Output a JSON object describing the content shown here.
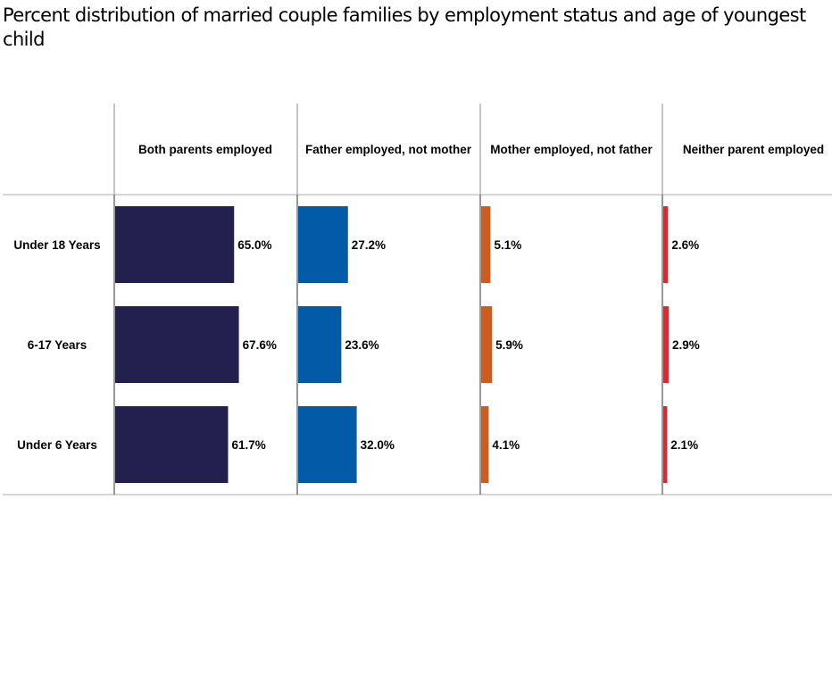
{
  "title": "Percent distribution of married couple families by employment status and age of youngest child",
  "chart_data": {
    "type": "bar",
    "title": "Percent distribution of married couple families by employment status and age of youngest child",
    "categories": [
      "Under 18 Years",
      "6-17 Years",
      "Under 6 Years"
    ],
    "series": [
      {
        "name": "Both parents employed",
        "color": "#22204e",
        "values": [
          65.0,
          67.6,
          61.7
        ],
        "labels": [
          "65.0%",
          "67.6%",
          "61.7%"
        ]
      },
      {
        "name": "Father employed, not mother",
        "color": "#035aa6",
        "values": [
          27.2,
          23.6,
          32.0
        ],
        "labels": [
          "27.2%",
          "23.6%",
          "32.0%"
        ]
      },
      {
        "name": "Mother employed, not father",
        "color": "#cf5c1f",
        "values": [
          5.1,
          5.9,
          4.1
        ],
        "labels": [
          "5.1%",
          "5.9%",
          "4.1%"
        ]
      },
      {
        "name": "Neither parent employed",
        "color": "#e3262e",
        "values": [
          2.6,
          2.9,
          2.1
        ],
        "labels": [
          "2.6%",
          "2.9%",
          "2.1%"
        ]
      }
    ],
    "xlim": [
      0,
      100
    ],
    "xlabel": "",
    "ylabel": "",
    "grid": false,
    "legend": "column headers"
  }
}
